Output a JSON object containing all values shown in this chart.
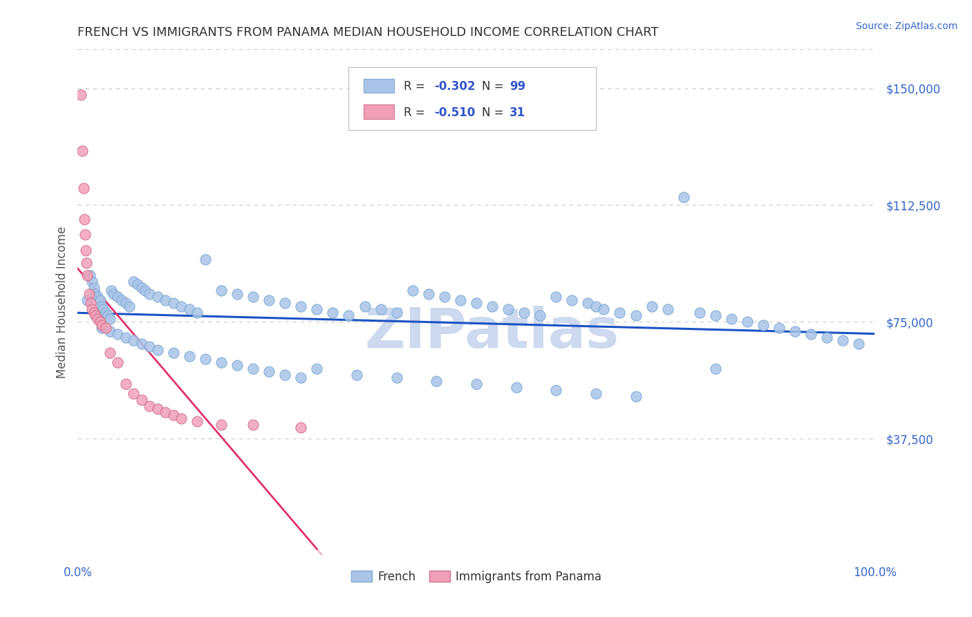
{
  "title": "FRENCH VS IMMIGRANTS FROM PANAMA MEDIAN HOUSEHOLD INCOME CORRELATION CHART",
  "source_text": "Source: ZipAtlas.com",
  "ylabel": "Median Household Income",
  "xlim": [
    0,
    100
  ],
  "ylim": [
    0,
    162500
  ],
  "yticks": [
    37500,
    75000,
    112500,
    150000
  ],
  "ytick_labels": [
    "$37,500",
    "$75,000",
    "$112,500",
    "$150,000"
  ],
  "xtick_labels": [
    "0.0%",
    "100.0%"
  ],
  "background_color": "#ffffff",
  "grid_color": "#c8c8c8",
  "watermark_text": "ZIPatlas",
  "watermark_color": "#ccd9ee",
  "french_color": "#aac4e8",
  "french_edge_color": "#7aaad0",
  "panama_color": "#f0a0b8",
  "panama_edge_color": "#d07090",
  "french_line_color": "#1a52c4",
  "panama_line_color": "#e0306a",
  "panama_dash_color": "#f0a8c0",
  "legend_R_french": "-0.302",
  "legend_N_french": "99",
  "legend_R_panama": "-0.510",
  "legend_N_panama": "31",
  "french_scatter_x": [
    1.2,
    1.5,
    1.8,
    2.0,
    2.2,
    2.5,
    2.8,
    3.0,
    3.2,
    3.5,
    3.8,
    4.0,
    4.2,
    4.5,
    5.0,
    5.5,
    6.0,
    6.5,
    7.0,
    7.5,
    8.0,
    8.5,
    9.0,
    10.0,
    11.0,
    12.0,
    13.0,
    14.0,
    15.0,
    16.0,
    18.0,
    20.0,
    22.0,
    24.0,
    26.0,
    28.0,
    30.0,
    32.0,
    34.0,
    36.0,
    38.0,
    40.0,
    42.0,
    44.0,
    46.0,
    48.0,
    50.0,
    52.0,
    54.0,
    56.0,
    58.0,
    60.0,
    62.0,
    64.0,
    65.0,
    66.0,
    68.0,
    70.0,
    72.0,
    74.0,
    76.0,
    78.0,
    80.0,
    82.0,
    84.0,
    86.0,
    88.0,
    90.0,
    92.0,
    94.0,
    96.0,
    98.0,
    3.0,
    4.0,
    5.0,
    6.0,
    7.0,
    8.0,
    9.0,
    10.0,
    12.0,
    14.0,
    16.0,
    18.0,
    20.0,
    22.0,
    24.0,
    26.0,
    28.0,
    30.0,
    35.0,
    40.0,
    45.0,
    50.0,
    55.0,
    60.0,
    65.0,
    70.0,
    80.0
  ],
  "french_scatter_y": [
    82000,
    90000,
    88000,
    86000,
    84000,
    83000,
    82000,
    80000,
    79000,
    78000,
    77000,
    76000,
    85000,
    84000,
    83000,
    82000,
    81000,
    80000,
    88000,
    87000,
    86000,
    85000,
    84000,
    83000,
    82000,
    81000,
    80000,
    79000,
    78000,
    95000,
    85000,
    84000,
    83000,
    82000,
    81000,
    80000,
    79000,
    78000,
    77000,
    80000,
    79000,
    78000,
    85000,
    84000,
    83000,
    82000,
    81000,
    80000,
    79000,
    78000,
    77000,
    83000,
    82000,
    81000,
    80000,
    79000,
    78000,
    77000,
    80000,
    79000,
    115000,
    78000,
    77000,
    76000,
    75000,
    74000,
    73000,
    72000,
    71000,
    70000,
    69000,
    68000,
    73000,
    72000,
    71000,
    70000,
    69000,
    68000,
    67000,
    66000,
    65000,
    64000,
    63000,
    62000,
    61000,
    60000,
    59000,
    58000,
    57000,
    60000,
    58000,
    57000,
    56000,
    55000,
    54000,
    53000,
    52000,
    51000,
    60000
  ],
  "panama_scatter_x": [
    0.4,
    0.6,
    0.7,
    0.8,
    0.9,
    1.0,
    1.1,
    1.2,
    1.4,
    1.6,
    1.8,
    2.0,
    2.2,
    2.5,
    2.8,
    3.0,
    3.5,
    4.0,
    5.0,
    6.0,
    7.0,
    8.0,
    9.0,
    10.0,
    11.0,
    12.0,
    13.0,
    15.0,
    18.0,
    22.0,
    28.0
  ],
  "panama_scatter_y": [
    148000,
    130000,
    118000,
    108000,
    103000,
    98000,
    94000,
    90000,
    84000,
    81000,
    79000,
    78000,
    77000,
    76000,
    75000,
    74000,
    73000,
    65000,
    62000,
    55000,
    52000,
    50000,
    48000,
    47000,
    46000,
    45000,
    44000,
    43000,
    42000,
    42000,
    41000
  ]
}
